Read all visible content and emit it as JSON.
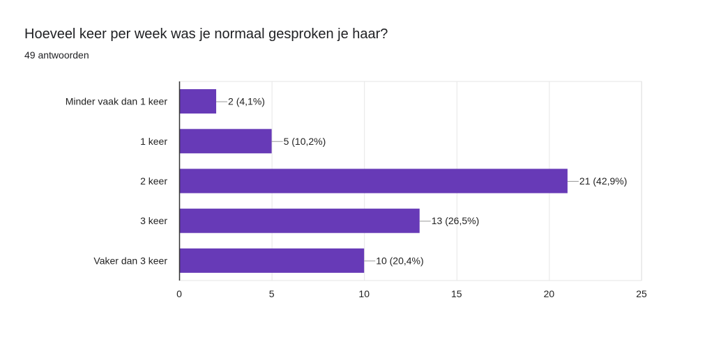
{
  "title": "Hoeveel keer per week was je normaal gesproken je haar?",
  "subtitle": "49 antwoorden",
  "colors": {
    "bar": "#673ab7",
    "grid": "#e6e6e6",
    "axis": "#333333",
    "leader": "#999999"
  },
  "chart_data": {
    "type": "bar",
    "orientation": "horizontal",
    "title": "Hoeveel keer per week was je normaal gesproken je haar?",
    "categories": [
      "Minder vaak dan 1 keer",
      "1 keer",
      "2 keer",
      "3 keer",
      "Vaker dan 3 keer"
    ],
    "values": [
      2,
      5,
      21,
      13,
      10
    ],
    "data_labels": [
      "2 (4,1%)",
      "5 (10,2%)",
      "21 (42,9%)",
      "13 (26,5%)",
      "10 (20,4%)"
    ],
    "xticks": [
      0,
      5,
      10,
      15,
      20,
      25
    ],
    "xlim": [
      0,
      25
    ],
    "grid": true,
    "legend": "none"
  }
}
